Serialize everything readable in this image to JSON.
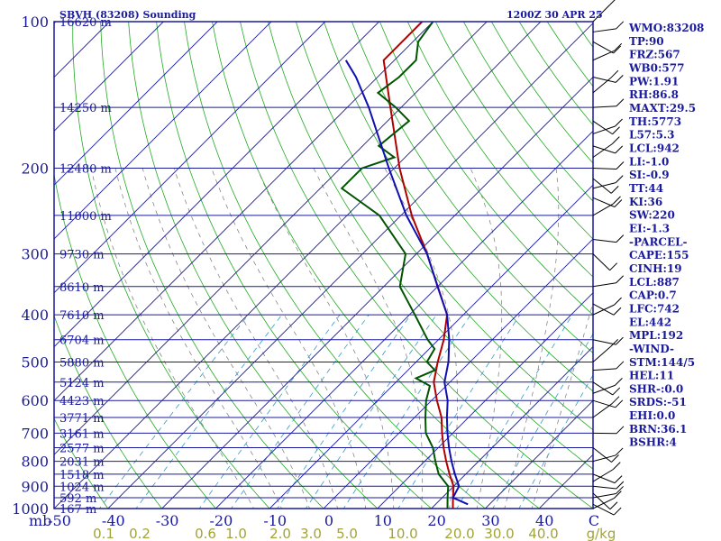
{
  "header": {
    "station": "SBVH (83208) Sounding",
    "time": "1200Z 30 APR 25"
  },
  "indices": [
    "WMO:83208",
    "TP:90",
    "FRZ:567",
    "WB0:577",
    "PW:1.91",
    "RH:86.8",
    "MAXT:29.5",
    "TH:5773",
    "L57:5.3",
    "LCL:942",
    "LI:-1.0",
    "SI:-0.9",
    "TT:44",
    "KI:36",
    "SW:220",
    "EI:-1.3",
    "-PARCEL-",
    "CAPE:155",
    "CINH:19",
    "LCL:887",
    "CAP:0.7",
    "LFC:742",
    "EL:442",
    "MPL:192",
    "-WIND-",
    "STM:144/5",
    "HEL:11",
    "SHR-:0.0",
    "SRDS:-51",
    "EHI:0.0",
    "BRN:36.1",
    "BSHR:4"
  ],
  "colors": {
    "isobar": "#1a1a9c",
    "isotherm": "#1a1a9c",
    "dry_adiabat": "#22aa22",
    "moist_adiabat": "#777777",
    "mixing_ratio": "#3399cc",
    "temperature": "#b00000",
    "dewpoint": "#005500",
    "parcel": "#1010b0",
    "mixing_label": "#a3a33a"
  },
  "chart_data": {
    "type": "line",
    "title": "SBVH (83208) Sounding",
    "subtitle": "1200Z 30 APR 25",
    "xlabel": "C",
    "ylabel": "mb",
    "xlim": [
      -50,
      50
    ],
    "ylim": [
      1000,
      100
    ],
    "y_scale": "log-pressure",
    "pressure_ticks": [
      100,
      200,
      300,
      400,
      500,
      600,
      700,
      800,
      900,
      1000
    ],
    "pressure_tick_labels": [
      "100",
      "200",
      "300",
      "400",
      "500",
      "600",
      "700",
      "800",
      "900",
      "1000"
    ],
    "temperature_ticks": [
      -50,
      -40,
      -30,
      -20,
      -10,
      0,
      10,
      20,
      30,
      40
    ],
    "temperature_tick_labels": [
      "-50",
      "-40",
      "-30",
      "-20",
      "-10",
      "0",
      "10",
      "20",
      "30",
      "40"
    ],
    "mixing_ratio_labels": [
      "0.1",
      "0.2",
      "0.6",
      "1.0",
      "2.0",
      "3.0",
      "5.0",
      "10.0",
      "20.0",
      "30.0",
      "40.0",
      "g/kg"
    ],
    "heights": [
      {
        "p": 100,
        "label": "16620 m"
      },
      {
        "p": 150,
        "label": "14250 m"
      },
      {
        "p": 200,
        "label": "12480 m"
      },
      {
        "p": 250,
        "label": "11000 m"
      },
      {
        "p": 300,
        "label": "9730 m"
      },
      {
        "p": 350,
        "label": "8610 m"
      },
      {
        "p": 400,
        "label": "7610 m"
      },
      {
        "p": 450,
        "label": "6704 m"
      },
      {
        "p": 500,
        "label": "5880 m"
      },
      {
        "p": 550,
        "label": "5124 m"
      },
      {
        "p": 600,
        "label": "4423 m"
      },
      {
        "p": 650,
        "label": "3771 m"
      },
      {
        "p": 700,
        "label": "3161 m"
      },
      {
        "p": 750,
        "label": "2577 m"
      },
      {
        "p": 800,
        "label": "2031 m"
      },
      {
        "p": 850,
        "label": "1518 m"
      },
      {
        "p": 900,
        "label": "1024 m"
      },
      {
        "p": 950,
        "label": "592 m"
      },
      {
        "p": 1000,
        "label": "167 m"
      }
    ],
    "series": [
      {
        "key": "temperature",
        "points": [
          [
            1000,
            24
          ],
          [
            950,
            22
          ],
          [
            900,
            20
          ],
          [
            850,
            17
          ],
          [
            800,
            14
          ],
          [
            750,
            11
          ],
          [
            700,
            8
          ],
          [
            650,
            5
          ],
          [
            600,
            1
          ],
          [
            550,
            -3
          ],
          [
            500,
            -6
          ],
          [
            450,
            -9
          ],
          [
            400,
            -13
          ],
          [
            350,
            -20
          ],
          [
            300,
            -28
          ],
          [
            250,
            -38
          ],
          [
            200,
            -49
          ],
          [
            150,
            -62
          ],
          [
            120,
            -72
          ],
          [
            100,
            -72
          ],
          [
            95,
            -70
          ]
        ]
      },
      {
        "key": "dewpoint",
        "points": [
          [
            1000,
            23
          ],
          [
            950,
            21
          ],
          [
            900,
            19
          ],
          [
            850,
            15
          ],
          [
            800,
            12
          ],
          [
            750,
            9
          ],
          [
            700,
            5
          ],
          [
            650,
            2
          ],
          [
            600,
            -1
          ],
          [
            560,
            -3
          ],
          [
            540,
            -7
          ],
          [
            520,
            -5
          ],
          [
            500,
            -8
          ],
          [
            470,
            -9
          ],
          [
            450,
            -12
          ],
          [
            400,
            -19
          ],
          [
            350,
            -27
          ],
          [
            300,
            -32
          ],
          [
            250,
            -44
          ],
          [
            220,
            -56
          ],
          [
            200,
            -56
          ],
          [
            190,
            -52
          ],
          [
            180,
            -57
          ],
          [
            160,
            -56
          ],
          [
            150,
            -61
          ],
          [
            140,
            -67
          ],
          [
            130,
            -66
          ],
          [
            120,
            -66
          ],
          [
            110,
            -69
          ],
          [
            100,
            -70
          ]
        ]
      },
      {
        "key": "parcel",
        "points": [
          [
            980,
            26
          ],
          [
            950,
            22
          ],
          [
            900,
            21
          ],
          [
            850,
            18
          ],
          [
            800,
            15
          ],
          [
            750,
            12
          ],
          [
            700,
            9
          ],
          [
            650,
            6
          ],
          [
            600,
            3
          ],
          [
            550,
            -1
          ],
          [
            500,
            -4
          ],
          [
            450,
            -8
          ],
          [
            400,
            -13
          ],
          [
            350,
            -20
          ],
          [
            300,
            -28
          ],
          [
            250,
            -39
          ],
          [
            200,
            -51
          ],
          [
            150,
            -66
          ],
          [
            130,
            -74
          ],
          [
            120,
            -79
          ]
        ]
      }
    ],
    "wind_barbs": "right-margin",
    "grid": true
  }
}
